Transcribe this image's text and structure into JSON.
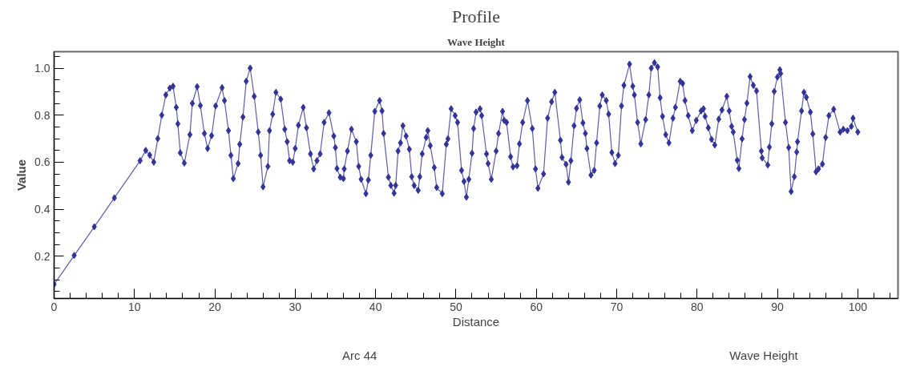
{
  "chart_data": {
    "type": "line",
    "title": "Profile",
    "subtitle": "Wave Height",
    "xlabel": "Distance",
    "ylabel": "Value",
    "legend_title": "Wave Height",
    "xlim": [
      0,
      105
    ],
    "xticks": [
      0,
      10,
      20,
      30,
      40,
      50,
      60,
      70,
      80,
      90,
      100
    ],
    "ylim": [
      0.02,
      1.07
    ],
    "yticks": [
      0.2,
      0.4,
      0.6,
      0.8,
      {
        "value": 1.0,
        "label": "1.0"
      }
    ],
    "grid": false,
    "legend": "bottom",
    "marker": "diamond",
    "line_style": "solid",
    "series": [
      {
        "name": "Arc 44",
        "color": "#333399",
        "x": [
          0,
          2.5,
          5,
          7.5,
          10.7,
          11.4,
          11.9,
          12.4,
          12.9,
          13.4,
          13.9,
          14.4,
          14.8,
          15.2,
          15.4,
          15.7,
          16.2,
          16.9,
          17.2,
          17.8,
          18.2,
          18.7,
          19.1,
          19.6,
          20.1,
          20.9,
          21.2,
          21.7,
          22.0,
          22.3,
          22.9,
          23.1,
          23.5,
          23.9,
          24.4,
          24.9,
          25.4,
          25.7,
          26.0,
          26.6,
          26.8,
          27.2,
          27.6,
          28.2,
          28.7,
          29.0,
          29.3,
          29.7,
          30.0,
          30.4,
          31.0,
          31.4,
          31.9,
          32.3,
          32.7,
          33.1,
          33.6,
          34.2,
          34.8,
          35.0,
          35.2,
          35.6,
          36.0,
          36.1,
          36.5,
          37.0,
          37.6,
          37.9,
          38.2,
          38.8,
          39.1,
          39.4,
          39.9,
          40.5,
          40.8,
          41.0,
          41.6,
          41.9,
          42.3,
          42.5,
          42.8,
          43.1,
          43.4,
          43.8,
          44.2,
          44.5,
          44.8,
          45.3,
          45.5,
          45.8,
          46.3,
          46.5,
          46.8,
          47.3,
          47.6,
          48.3,
          48.8,
          49.0,
          49.4,
          49.9,
          50.2,
          50.7,
          51.0,
          51.3,
          51.6,
          52.0,
          52.2,
          52.5,
          53.0,
          53.2,
          53.8,
          54.0,
          54.4,
          55.0,
          55.3,
          55.8,
          56.0,
          56.3,
          56.8,
          57.1,
          57.6,
          57.9,
          58.3,
          58.9,
          59.5,
          59.9,
          60.2,
          60.9,
          61.4,
          61.9,
          62.3,
          63.0,
          63.2,
          63.7,
          64.0,
          64.3,
          64.7,
          65.0,
          65.4,
          65.8,
          66.1,
          66.3,
          66.8,
          67.2,
          67.5,
          67.9,
          68.2,
          68.7,
          69.0,
          69.4,
          69.8,
          70.2,
          70.6,
          70.9,
          71.6,
          72.0,
          72.2,
          72.6,
          73.0,
          73.6,
          74.0,
          74.3,
          74.7,
          75.1,
          75.4,
          75.7,
          76.1,
          76.5,
          77.0,
          77.3,
          77.9,
          78.2,
          78.5,
          78.9,
          79.4,
          79.9,
          80.5,
          80.8,
          81.0,
          81.4,
          81.8,
          82.2,
          82.7,
          83.1,
          83.7,
          84.0,
          84.3,
          84.5,
          85.0,
          85.2,
          85.6,
          85.9,
          86.2,
          86.6,
          87.0,
          87.4,
          88.0,
          88.1,
          88.8,
          89.0,
          89.3,
          89.6,
          90.0,
          90.3,
          90.4,
          91.0,
          91.4,
          91.7,
          92.1,
          92.4,
          92.5,
          93.0,
          93.3,
          93.6,
          94.1,
          94.4,
          94.8,
          95.1,
          95.6,
          96.0,
          96.4,
          97.0,
          97.8,
          98.2,
          98.7,
          99.2,
          99.4,
          100.0
        ],
        "values": [
          0.08,
          0.203,
          0.325,
          0.448,
          0.606,
          0.65,
          0.63,
          0.6,
          0.7,
          0.8,
          0.886,
          0.915,
          0.923,
          0.833,
          0.763,
          0.64,
          0.596,
          0.717,
          0.85,
          0.921,
          0.841,
          0.722,
          0.658,
          0.713,
          0.839,
          0.917,
          0.862,
          0.734,
          0.629,
          0.53,
          0.594,
          0.676,
          0.792,
          0.944,
          1.0,
          0.88,
          0.728,
          0.629,
          0.495,
          0.582,
          0.734,
          0.804,
          0.897,
          0.868,
          0.74,
          0.687,
          0.606,
          0.6,
          0.658,
          0.757,
          0.833,
          0.746,
          0.635,
          0.571,
          0.606,
          0.635,
          0.769,
          0.81,
          0.711,
          0.662,
          0.573,
          0.536,
          0.53,
          0.571,
          0.647,
          0.74,
          0.687,
          0.582,
          0.527,
          0.466,
          0.524,
          0.629,
          0.816,
          0.862,
          0.818,
          0.722,
          0.536,
          0.501,
          0.468,
          0.501,
          0.647,
          0.682,
          0.755,
          0.711,
          0.655,
          0.538,
          0.501,
          0.48,
          0.538,
          0.635,
          0.705,
          0.734,
          0.67,
          0.577,
          0.492,
          0.466,
          0.676,
          0.699,
          0.827,
          0.798,
          0.769,
          0.565,
          0.518,
          0.451,
          0.527,
          0.638,
          0.743,
          0.813,
          0.827,
          0.798,
          0.635,
          0.594,
          0.527,
          0.647,
          0.722,
          0.816,
          0.778,
          0.769,
          0.623,
          0.58,
          0.585,
          0.678,
          0.769,
          0.862,
          0.743,
          0.571,
          0.489,
          0.55,
          0.787,
          0.857,
          0.897,
          0.693,
          0.62,
          0.591,
          0.515,
          0.606,
          0.755,
          0.829,
          0.865,
          0.767,
          0.722,
          0.658,
          0.545,
          0.565,
          0.682,
          0.839,
          0.886,
          0.862,
          0.804,
          0.641,
          0.594,
          0.629,
          0.839,
          0.927,
          1.017,
          0.923,
          0.886,
          0.769,
          0.678,
          0.781,
          0.886,
          1.0,
          1.023,
          1.005,
          0.874,
          0.795,
          0.717,
          0.682,
          0.787,
          0.833,
          0.944,
          0.935,
          0.862,
          0.798,
          0.734,
          0.778,
          0.818,
          0.827,
          0.795,
          0.746,
          0.697,
          0.673,
          0.783,
          0.822,
          0.88,
          0.818,
          0.752,
          0.728,
          0.608,
          0.573,
          0.699,
          0.781,
          0.851,
          0.964,
          0.927,
          0.903,
          0.647,
          0.618,
          0.588,
          0.664,
          0.763,
          0.901,
          0.962,
          0.993,
          0.977,
          0.769,
          0.662,
          0.475,
          0.538,
          0.643,
          0.687,
          0.818,
          0.897,
          0.876,
          0.813,
          0.72,
          0.559,
          0.571,
          0.592,
          0.705,
          0.798,
          0.825,
          0.728,
          0.74,
          0.734,
          0.752,
          0.787,
          0.728
        ]
      }
    ]
  }
}
